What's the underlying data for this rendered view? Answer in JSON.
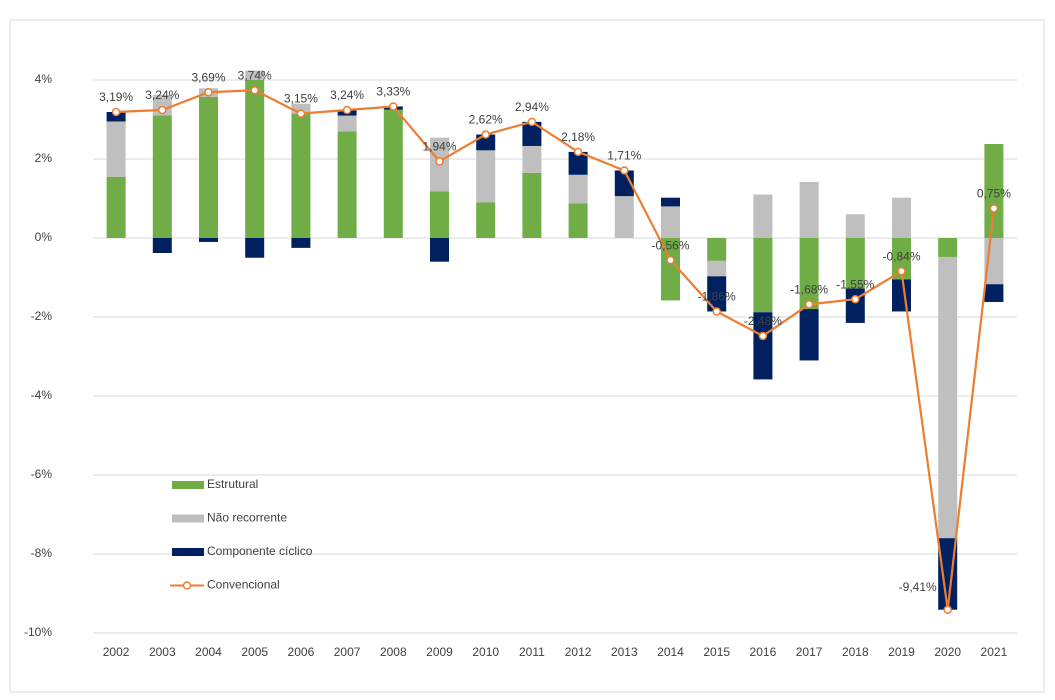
{
  "chart_data": {
    "type": "bar",
    "categories": [
      "2002",
      "2003",
      "2004",
      "2005",
      "2006",
      "2007",
      "2008",
      "2009",
      "2010",
      "2011",
      "2012",
      "2013",
      "2014",
      "2015",
      "2016",
      "2017",
      "2018",
      "2019",
      "2020",
      "2021"
    ],
    "series": [
      {
        "name": "Estrutural",
        "color": "#70ad47",
        "values": [
          1.55,
          3.1,
          3.57,
          4.0,
          3.15,
          2.7,
          3.25,
          1.18,
          0.9,
          1.65,
          0.88,
          0,
          -1.58,
          -0.58,
          -1.88,
          -1.8,
          -1.28,
          -1.05,
          -0.48,
          2.38
        ]
      },
      {
        "name": "Não recorrente",
        "color": "#bfbfbf",
        "values": [
          1.4,
          0.52,
          0.22,
          0.24,
          0.25,
          0.4,
          0,
          1.36,
          1.32,
          0.68,
          0.72,
          1.06,
          0.8,
          -0.39,
          1.1,
          1.42,
          0.6,
          1.02,
          -7.12,
          -1.17
        ]
      },
      {
        "name": "Componente cíclico",
        "color": "#002060",
        "values": [
          0.24,
          -0.38,
          -0.1,
          -0.5,
          -0.25,
          0.14,
          0.08,
          -0.6,
          0.4,
          0.61,
          0.58,
          0.65,
          0.22,
          -0.89,
          -1.7,
          -1.3,
          -0.87,
          -0.81,
          -1.81,
          -0.45
        ]
      },
      {
        "name": "Convencional",
        "type": "line",
        "color": "#ed7d31",
        "values": [
          3.19,
          3.24,
          3.69,
          3.74,
          3.15,
          3.24,
          3.33,
          1.94,
          2.62,
          2.94,
          2.18,
          1.71,
          -0.56,
          -1.86,
          -2.48,
          -1.68,
          -1.55,
          -0.84,
          -9.41,
          0.75
        ],
        "value_labels": [
          "3,19%",
          "3,24%",
          "3,69%",
          "3,74%",
          "3,15%",
          "3,24%",
          "3,33%",
          "1,94%",
          "2,62%",
          "2,94%",
          "2,18%",
          "1,71%",
          "-0,56%",
          "-1,86%",
          "-2,48%",
          "-1,68%",
          "-1,55%",
          "-0,84%",
          "-9,41%",
          "0,75%"
        ]
      }
    ],
    "ylim": [
      -10,
      4
    ],
    "yticks": [
      {
        "value": -10,
        "label": "-10%"
      },
      {
        "value": -8,
        "label": "-8%"
      },
      {
        "value": -6,
        "label": "-6%"
      },
      {
        "value": -4,
        "label": "-4%"
      },
      {
        "value": -2,
        "label": "-2%"
      },
      {
        "value": 0,
        "label": "0%"
      },
      {
        "value": 2,
        "label": "2%"
      },
      {
        "value": 4,
        "label": "4%"
      }
    ],
    "grid": true,
    "legend": "lower left"
  }
}
